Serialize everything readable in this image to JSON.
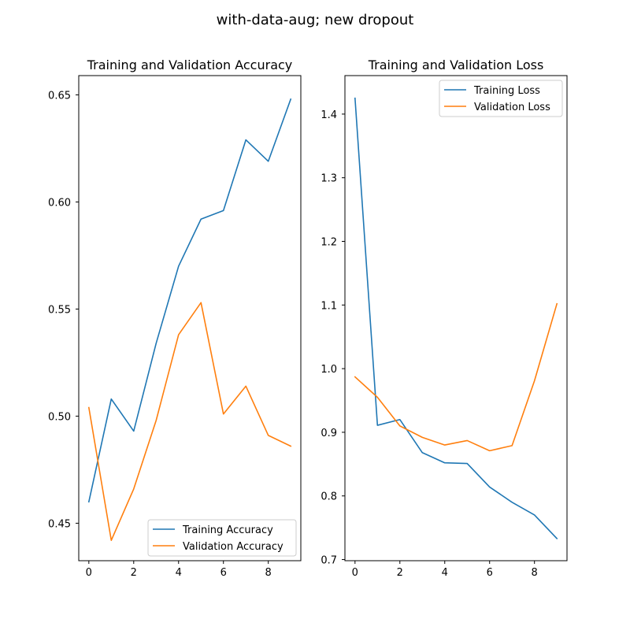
{
  "figure": {
    "title": "with-data-aug; new dropout"
  },
  "chart_data": [
    {
      "type": "line",
      "title": "Training and Validation Accuracy",
      "xlabel": "",
      "ylabel": "",
      "x": [
        0,
        1,
        2,
        3,
        4,
        5,
        6,
        7,
        8,
        9
      ],
      "xlim": [
        -0.45,
        9.45
      ],
      "ylim": [
        0.4325,
        0.659
      ],
      "xticks": [
        0,
        2,
        4,
        6,
        8
      ],
      "yticks": [
        0.45,
        0.5,
        0.55,
        0.6,
        0.65
      ],
      "xtick_labels": [
        "0",
        "2",
        "4",
        "6",
        "8"
      ],
      "ytick_labels": [
        "0.45",
        "0.50",
        "0.55",
        "0.60",
        "0.65"
      ],
      "grid": false,
      "legend_position": "lower-right",
      "series": [
        {
          "name": "Training Accuracy",
          "color": "#1f77b4",
          "values": [
            0.46,
            0.508,
            0.493,
            0.534,
            0.57,
            0.592,
            0.596,
            0.629,
            0.619,
            0.648
          ]
        },
        {
          "name": "Validation Accuracy",
          "color": "#ff7f0e",
          "values": [
            0.504,
            0.442,
            0.466,
            0.498,
            0.538,
            0.553,
            0.501,
            0.514,
            0.491,
            0.486
          ]
        }
      ]
    },
    {
      "type": "line",
      "title": "Training and Validation Loss",
      "xlabel": "",
      "ylabel": "",
      "x": [
        0,
        1,
        2,
        3,
        4,
        5,
        6,
        7,
        8,
        9
      ],
      "xlim": [
        -0.45,
        9.45
      ],
      "ylim": [
        0.6982,
        1.4605
      ],
      "xticks": [
        0,
        2,
        4,
        6,
        8
      ],
      "yticks": [
        0.7,
        0.8,
        0.9,
        1.0,
        1.1,
        1.2,
        1.3,
        1.4
      ],
      "xtick_labels": [
        "0",
        "2",
        "4",
        "6",
        "8"
      ],
      "ytick_labels": [
        "0.7",
        "0.8",
        "0.9",
        "1.0",
        "1.1",
        "1.2",
        "1.3",
        "1.4"
      ],
      "grid": false,
      "legend_position": "upper-right",
      "series": [
        {
          "name": "Training Loss",
          "color": "#1f77b4",
          "values": [
            1.425,
            0.911,
            0.92,
            0.868,
            0.852,
            0.851,
            0.814,
            0.79,
            0.77,
            0.733
          ]
        },
        {
          "name": "Validation Loss",
          "color": "#ff7f0e",
          "values": [
            0.987,
            0.955,
            0.91,
            0.892,
            0.88,
            0.887,
            0.871,
            0.879,
            0.981,
            1.102
          ]
        }
      ]
    }
  ]
}
